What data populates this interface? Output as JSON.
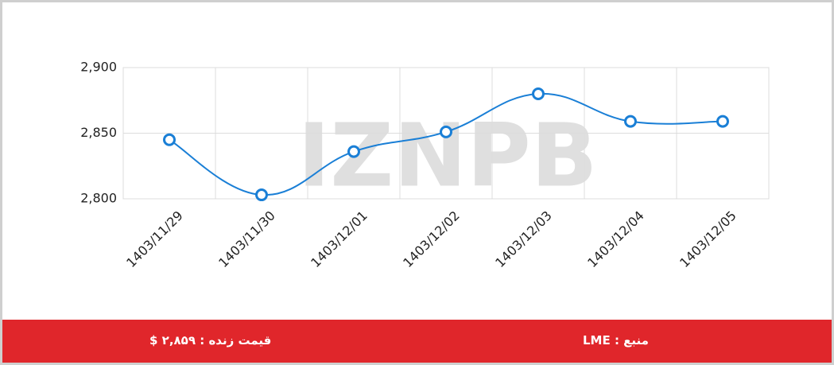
{
  "chart_data": {
    "type": "line",
    "categories": [
      "1403/11/29",
      "1403/11/30",
      "1403/12/01",
      "1403/12/02",
      "1403/12/03",
      "1403/12/04",
      "1403/12/05"
    ],
    "series": [
      {
        "name": "LME",
        "color": "#1a7fd6",
        "values": [
          2845,
          2803,
          2836,
          2851,
          2880,
          2859,
          2859
        ]
      }
    ],
    "ylim": [
      2800,
      2900
    ],
    "yticks": [
      {
        "value": 2800,
        "label": "2,800"
      },
      {
        "value": 2850,
        "label": "2,850"
      },
      {
        "value": 2900,
        "label": "2,900"
      }
    ],
    "grid": true
  },
  "watermark": "IZNPB",
  "footer": {
    "price": "قیمت زنده : ۲,۸۵۹ $",
    "source": "منبع : LME"
  }
}
